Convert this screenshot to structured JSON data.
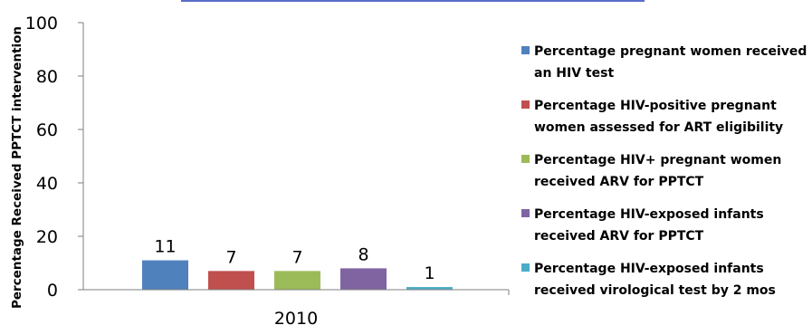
{
  "colors": {
    "title_bar": "#5b6cc8",
    "axis": "#7f7f7f",
    "series": [
      "#4f81bd",
      "#c0504d",
      "#9bbb59",
      "#8064a2",
      "#4bacc6"
    ]
  },
  "chart_data": {
    "type": "bar",
    "categories": [
      "2010"
    ],
    "ylabel": "Percentage Received PPTCT intervention",
    "xlabel": "",
    "ylim": [
      0,
      100
    ],
    "yticks": [
      0,
      20,
      40,
      60,
      80,
      100
    ],
    "grid": false,
    "legend_position": "right",
    "series": [
      {
        "name": "Percentage pregnant women received an HIV test",
        "legend_lines": [
          "Percentage pregnant women received",
          "an HIV test"
        ],
        "values": [
          11
        ],
        "data_label": "11"
      },
      {
        "name": "Percentage HIV-positive pregnant women assessed for ART eligibility",
        "legend_lines": [
          "Percentage HIV-positive pregnant",
          "women assessed for ART eligibility"
        ],
        "values": [
          7
        ],
        "data_label": "7"
      },
      {
        "name": "Percentage HIV+ pregnant women received ARV for PPTCT",
        "legend_lines": [
          "Percentage HIV+ pregnant women",
          "received ARV for PPTCT"
        ],
        "values": [
          7
        ],
        "data_label": "7"
      },
      {
        "name": "Percentage HIV-exposed infants received ARV for PPTCT",
        "legend_lines": [
          "Percentage HIV-exposed  infants",
          "received ARV for PPTCT"
        ],
        "values": [
          8
        ],
        "data_label": "8"
      },
      {
        "name": "Percentage HIV-exposed infants received virological test by 2 mos",
        "legend_lines": [
          "Percentage HIV-exposed infants",
          "received virological test by 2 mos"
        ],
        "values": [
          1
        ],
        "data_label": "1"
      }
    ]
  }
}
